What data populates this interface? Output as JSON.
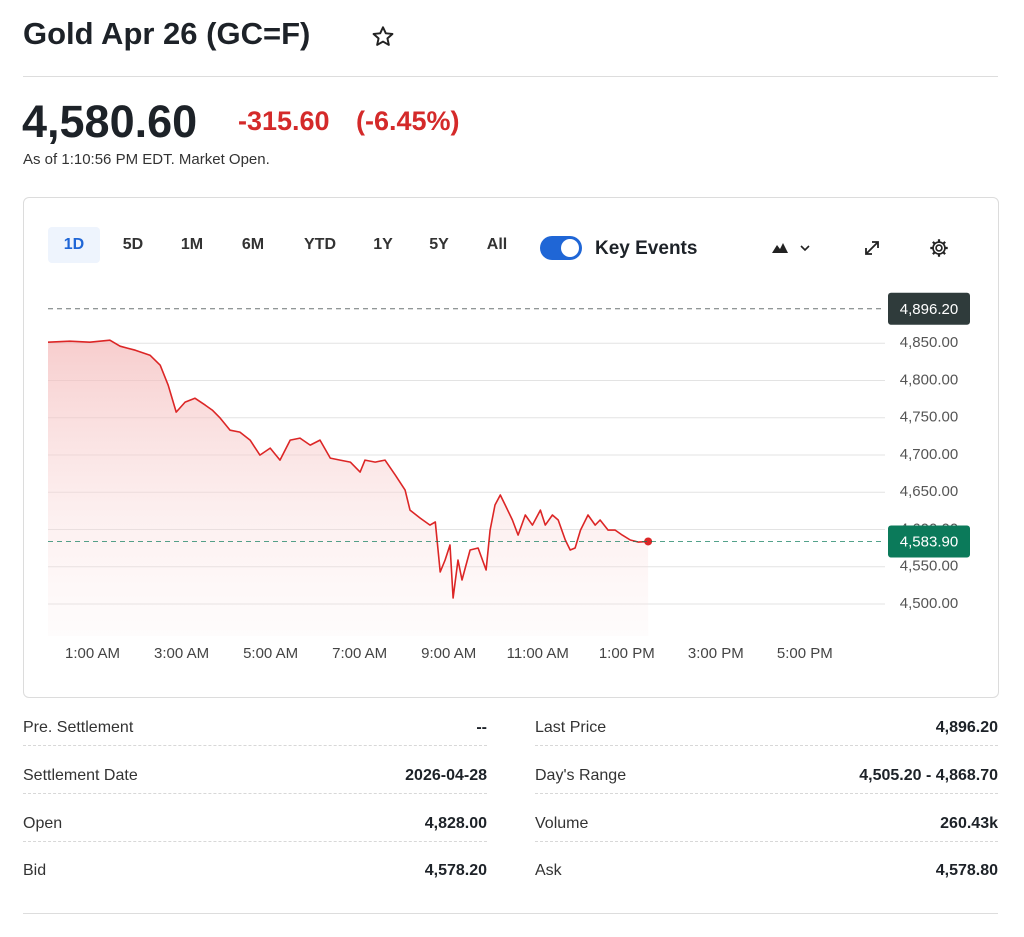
{
  "header": {
    "title": "Gold Apr 26 (GC=F)",
    "price": "4,580.60",
    "change": "-315.60",
    "change_pct": "(-6.45%)",
    "as_of": "As of 1:10:56 PM EDT. Market Open."
  },
  "toolbar": {
    "ranges": [
      "1D",
      "5D",
      "1M",
      "6M",
      "YTD",
      "1Y",
      "5Y",
      "All"
    ],
    "key_events": "Key Events"
  },
  "chart_data": {
    "type": "line",
    "x": [
      0.0,
      0.49,
      0.94,
      1.39,
      1.62,
      1.96,
      2.29,
      2.52,
      2.7,
      2.88,
      3.08,
      3.3,
      3.53,
      3.69,
      3.87,
      4.09,
      4.31,
      4.54,
      4.76,
      4.99,
      5.21,
      5.44,
      5.66,
      5.89,
      6.11,
      6.34,
      6.56,
      6.79,
      7.01,
      7.12,
      7.35,
      7.57,
      7.8,
      8.02,
      8.13,
      8.36,
      8.58,
      8.7,
      8.81,
      8.92,
      9.03,
      9.1,
      9.21,
      9.3,
      9.48,
      9.66,
      9.84,
      9.93,
      10.04,
      10.16,
      10.27,
      10.43,
      10.56,
      10.72,
      10.88,
      11.06,
      11.17,
      11.33,
      11.46,
      11.62,
      11.73,
      11.84,
      11.96,
      12.13,
      12.29,
      12.4,
      12.58,
      12.74,
      12.9,
      13.08,
      13.26,
      13.48
    ],
    "series": [
      {
        "color": "#dc2626",
        "values": [
          4851.3,
          4852.7,
          4851.3,
          4854.0,
          4846.0,
          4840.6,
          4833.9,
          4820.5,
          4793.7,
          4757.5,
          4770.9,
          4776.2,
          4766.9,
          4760.2,
          4749.4,
          4733.3,
          4730.7,
          4720.0,
          4699.8,
          4709.2,
          4693.1,
          4720.0,
          4722.6,
          4713.2,
          4720.0,
          4695.8,
          4693.1,
          4690.4,
          4677.0,
          4693.1,
          4690.4,
          4693.1,
          4673.0,
          4652.9,
          4626.0,
          4615.3,
          4605.9,
          4610.0,
          4542.9,
          4559.0,
          4579.1,
          4508.0,
          4559.0,
          4532.2,
          4572.4,
          4575.1,
          4545.6,
          4599.2,
          4632.8,
          4646.2,
          4632.8,
          4612.7,
          4592.5,
          4619.4,
          4605.9,
          4626.0,
          4605.9,
          4619.4,
          4612.7,
          4585.8,
          4572.4,
          4575.1,
          4599.2,
          4619.4,
          4605.9,
          4612.7,
          4599.2,
          4599.2,
          4592.5,
          4585.8,
          4583.1,
          4583.9
        ]
      }
    ],
    "xlim": [
      0,
      18.8
    ],
    "xticks": [
      {
        "value": 1,
        "label": "1:00 AM"
      },
      {
        "value": 3,
        "label": "3:00 AM"
      },
      {
        "value": 5,
        "label": "5:00 AM"
      },
      {
        "value": 7,
        "label": "7:00 AM"
      },
      {
        "value": 9,
        "label": "9:00 AM"
      },
      {
        "value": 11,
        "label": "11:00 AM"
      },
      {
        "value": 13,
        "label": "1:00 PM"
      },
      {
        "value": 15,
        "label": "3:00 PM"
      },
      {
        "value": 17,
        "label": "5:00 PM"
      }
    ],
    "ylim": [
      4457,
      4908
    ],
    "yticks": [
      {
        "value": 4500,
        "label": "4,500.00"
      },
      {
        "value": 4550,
        "label": "4,550.00"
      },
      {
        "value": 4600,
        "label": "4,600.00"
      },
      {
        "value": 4650,
        "label": "4,650.00"
      },
      {
        "value": 4700,
        "label": "4,700.00"
      },
      {
        "value": 4750,
        "label": "4,750.00"
      },
      {
        "value": 4800,
        "label": "4,800.00"
      },
      {
        "value": 4850,
        "label": "4,850.00"
      }
    ],
    "grid": true,
    "reference_lines": [
      {
        "value": 4896.2,
        "label": "4,896.20",
        "color": "#2f3b3b"
      },
      {
        "value": 4583.9,
        "label": "4,583.90",
        "color": "#0b7a5a"
      }
    ]
  },
  "stats": {
    "left": [
      [
        "Pre. Settlement",
        "--"
      ],
      [
        "Settlement Date",
        "2026-04-28"
      ],
      [
        "Open",
        "4,828.00"
      ],
      [
        "Bid",
        "4,578.20"
      ]
    ],
    "right": [
      [
        "Last Price",
        "4,896.20"
      ],
      [
        "Day's Range",
        "4,505.20 - 4,868.70"
      ],
      [
        "Volume",
        "260.43k"
      ],
      [
        "Ask",
        "4,578.80"
      ]
    ]
  }
}
